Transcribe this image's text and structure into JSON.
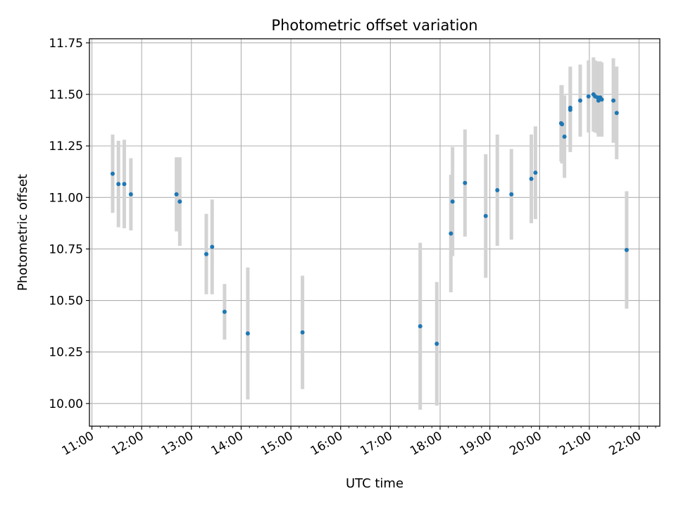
{
  "chart_data": {
    "type": "scatter",
    "title": "Photometric offset variation",
    "xlabel": "UTC time",
    "ylabel": "Photometric offset",
    "xlim": [
      "10:57",
      "22:25"
    ],
    "ylim": [
      9.89,
      11.77
    ],
    "xticks": [
      "11:00",
      "12:00",
      "13:00",
      "14:00",
      "15:00",
      "16:00",
      "17:00",
      "18:00",
      "19:00",
      "20:00",
      "21:00",
      "22:00"
    ],
    "yticks": [
      "10.00",
      "10.25",
      "10.50",
      "10.75",
      "11.00",
      "11.25",
      "11.50",
      "11.75"
    ],
    "grid": true,
    "series": [
      {
        "x": [
          "11:25",
          "11:32",
          "11:39",
          "11:47",
          "12:42",
          "12:46",
          "13:18",
          "13:25",
          "13:40",
          "14:08",
          "15:14",
          "17:36",
          "17:56",
          "18:13",
          "18:15",
          "18:30",
          "18:55",
          "19:09",
          "19:26",
          "19:50",
          "19:55",
          "20:26",
          "20:27",
          "20:30",
          "20:37",
          "20:37",
          "20:49",
          "20:59",
          "21:05",
          "21:07",
          "21:10",
          "21:11",
          "21:13",
          "21:15",
          "21:29",
          "21:33",
          "21:45"
        ],
        "y": [
          11.115,
          11.065,
          11.065,
          11.015,
          11.015,
          10.98,
          10.725,
          10.76,
          10.445,
          10.34,
          10.345,
          10.375,
          10.29,
          10.825,
          10.98,
          11.07,
          10.91,
          11.035,
          11.015,
          11.09,
          11.12,
          11.36,
          11.355,
          11.295,
          11.425,
          11.435,
          11.47,
          11.49,
          11.5,
          11.49,
          11.485,
          11.47,
          11.485,
          11.475,
          11.47,
          11.41,
          10.745
        ],
        "err": [
          0.19,
          0.21,
          0.215,
          0.175,
          0.18,
          0.215,
          0.195,
          0.23,
          0.135,
          0.32,
          0.275,
          0.405,
          0.3,
          0.285,
          0.265,
          0.26,
          0.3,
          0.27,
          0.22,
          0.215,
          0.225,
          0.185,
          0.19,
          0.2,
          0.205,
          0.2,
          0.175,
          0.175,
          0.18,
          0.175,
          0.175,
          0.175,
          0.175,
          0.18,
          0.205,
          0.225,
          0.285
        ],
        "marker_color": "#1f77b4",
        "errorbar_color": "#d3d3d3"
      }
    ]
  }
}
